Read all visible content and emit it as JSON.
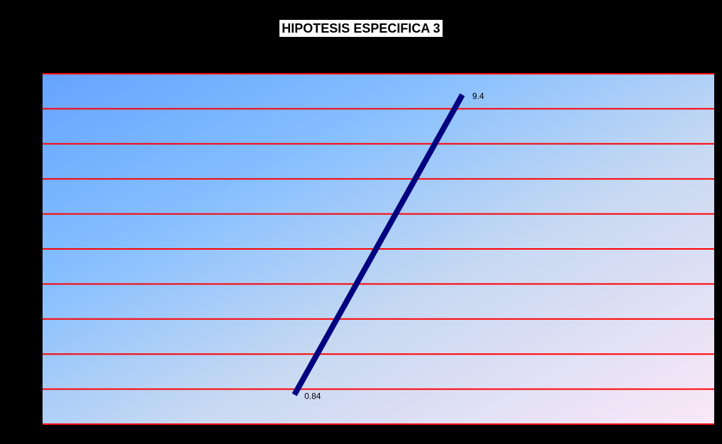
{
  "chart_data": {
    "type": "line",
    "title": "HIPOTESIS ESPECIFICA 3",
    "xlabel": "",
    "ylabel": "",
    "ylim": [
      0,
      10
    ],
    "yticks": [
      "0",
      "1",
      "2",
      "3",
      "4",
      "5",
      "6",
      "7",
      "8",
      "9",
      "10"
    ],
    "categories": [
      "",
      "",
      "",
      ""
    ],
    "series": [
      {
        "values": [
          null,
          0.84,
          9.4,
          null
        ],
        "data_labels": [
          "",
          "0.84",
          "9.4",
          ""
        ]
      }
    ],
    "grid": true,
    "legend": "none",
    "colors": {
      "line": "#000080",
      "gridline": "#ff0000",
      "background": "#000000",
      "plot_gradient_start": "#66a3ff",
      "plot_gradient_end": "#fbe8f8"
    }
  }
}
